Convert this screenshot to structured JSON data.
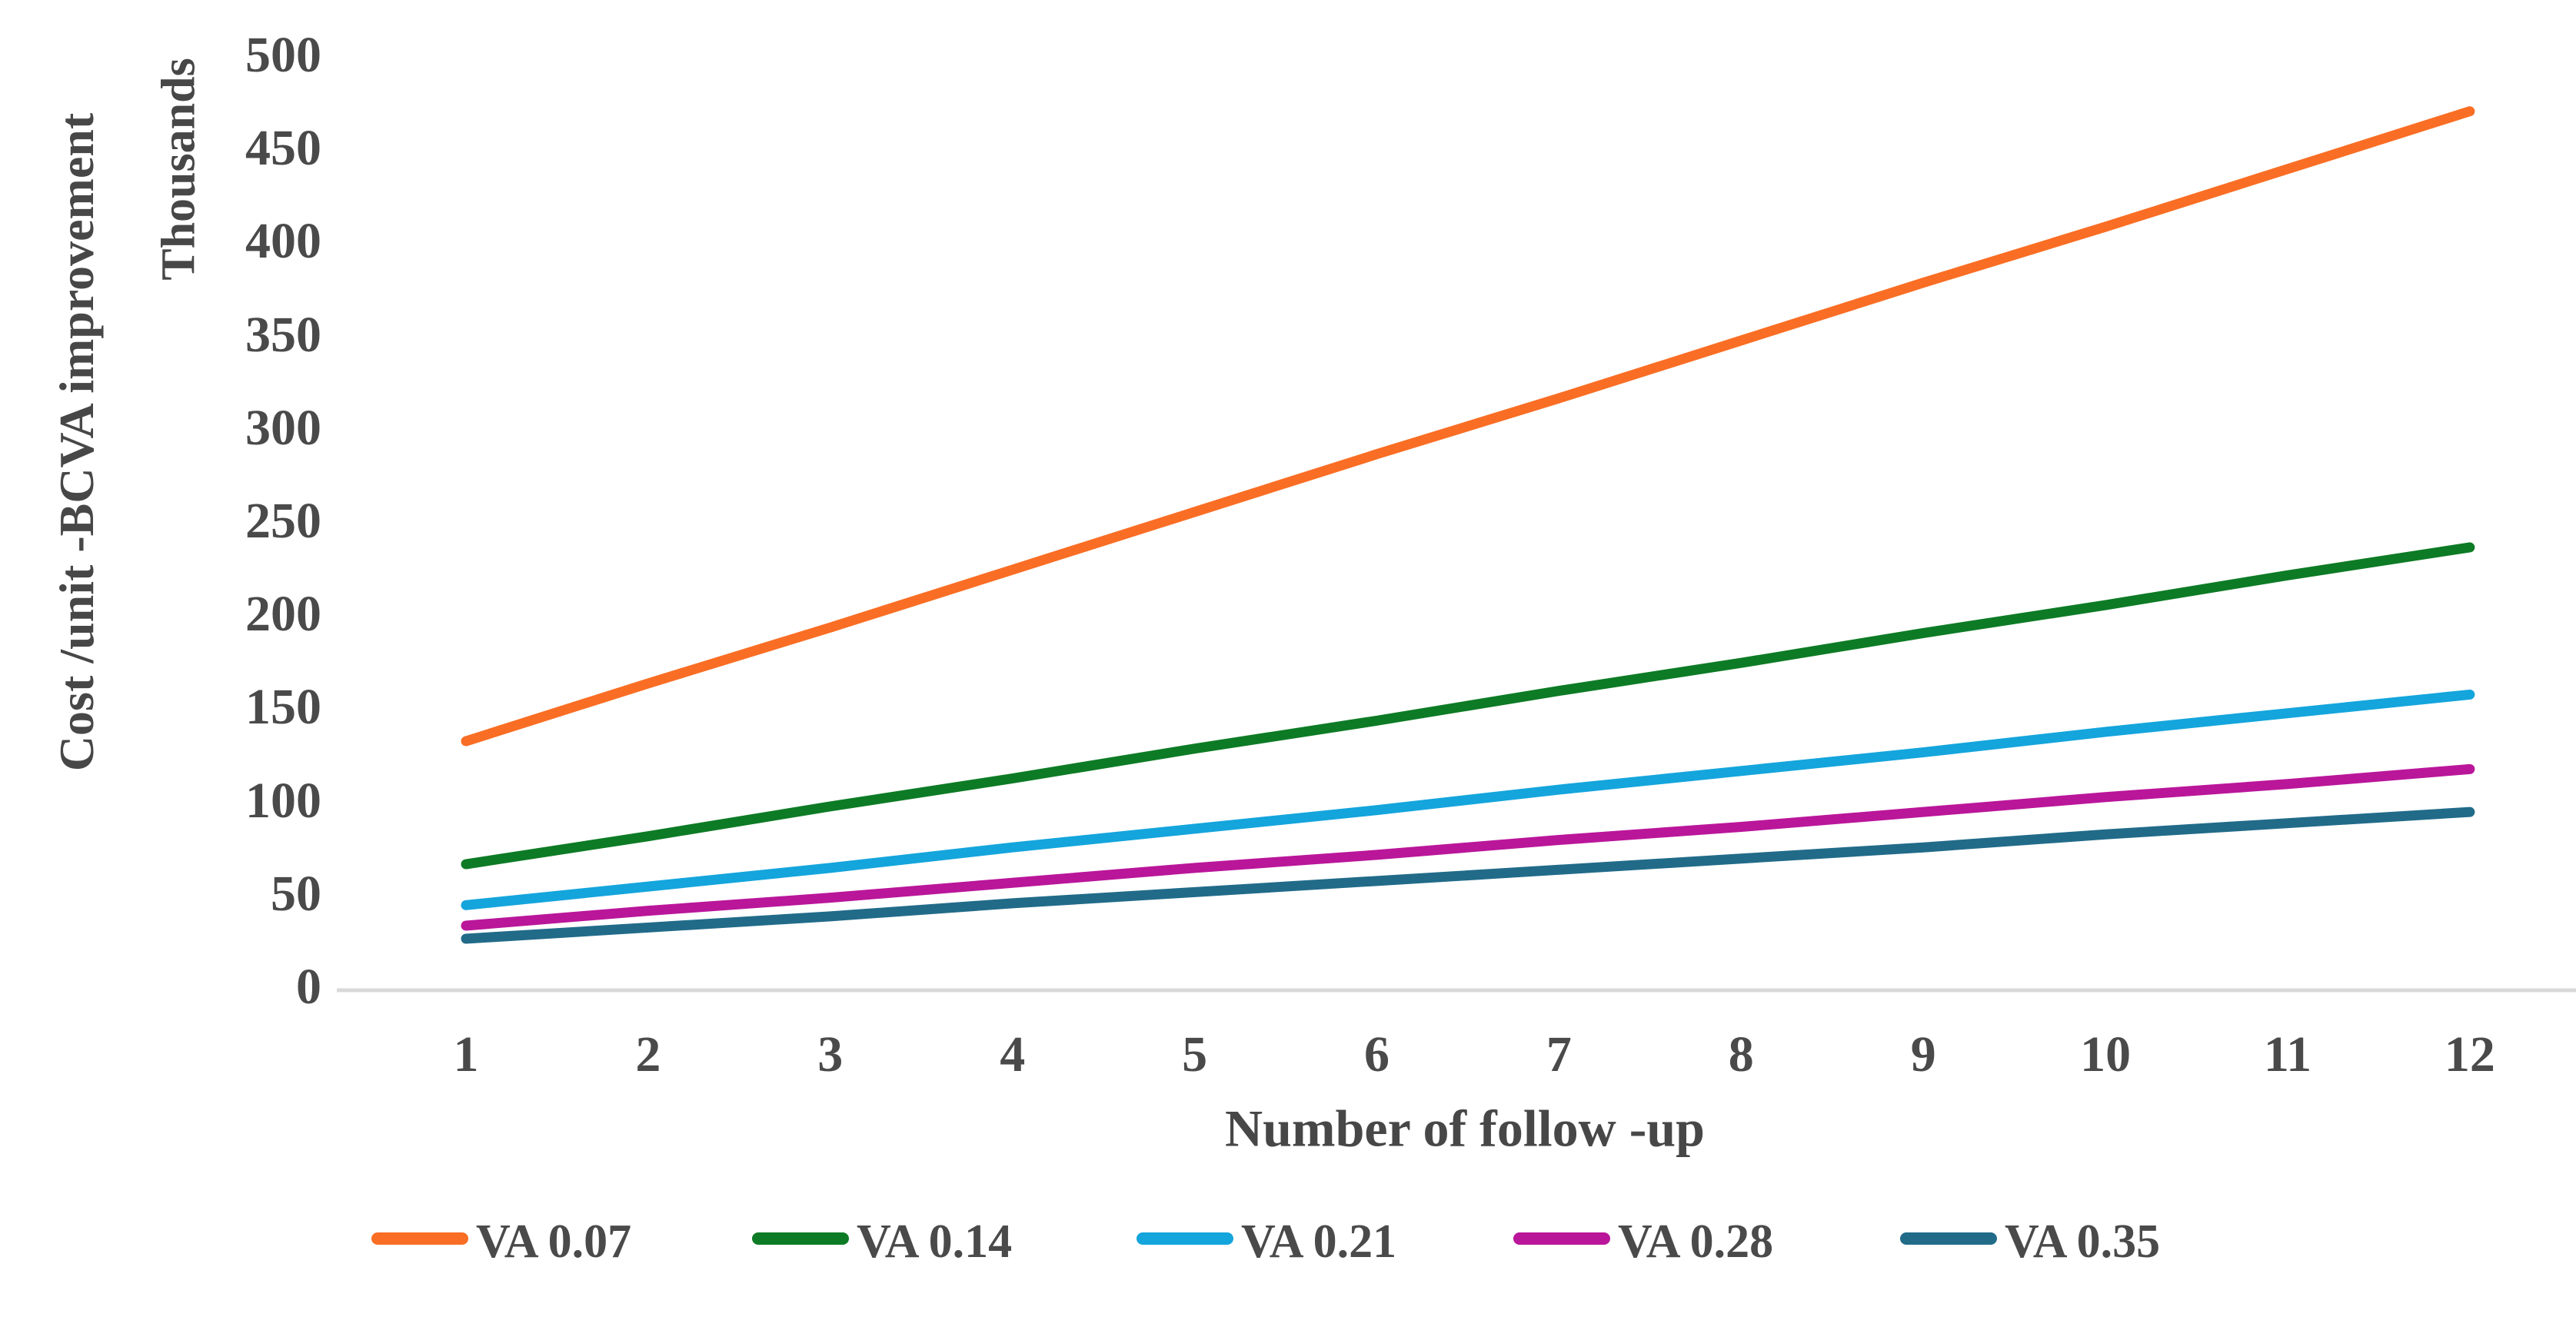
{
  "chart_data": {
    "type": "line",
    "title": "",
    "xlabel": "Number of follow -up",
    "ylabel": "Cost /unit -BCVA improvement",
    "y_unit_label": "Thousands",
    "x": [
      1,
      2,
      3,
      4,
      5,
      6,
      7,
      8,
      9,
      10,
      11,
      12
    ],
    "y_ticks": [
      0,
      50,
      100,
      150,
      200,
      250,
      300,
      350,
      400,
      450,
      500
    ],
    "ylim": [
      0,
      500
    ],
    "grid": false,
    "legend_position": "bottom",
    "axis_line_color": "#d9d9d9",
    "text_color": "#4a4a4a",
    "series": [
      {
        "name": "VA 0.07",
        "color": "#F96E24",
        "values": [
          132,
          163,
          193,
          224,
          255,
          286,
          316,
          347,
          378,
          408,
          439,
          470
        ]
      },
      {
        "name": "VA 0.14",
        "color": "#0D7B25",
        "values": [
          66,
          81,
          97,
          112,
          128,
          143,
          159,
          174,
          190,
          205,
          221,
          236
        ]
      },
      {
        "name": "VA 0.21",
        "color": "#14A5DC",
        "values": [
          44,
          54,
          64,
          75,
          85,
          95,
          106,
          116,
          126,
          137,
          147,
          157
        ]
      },
      {
        "name": "VA 0.28",
        "color": "#BA169A",
        "values": [
          33,
          41,
          48,
          56,
          64,
          71,
          79,
          86,
          94,
          102,
          109,
          117
        ]
      },
      {
        "name": "VA 0.35",
        "color": "#216B89",
        "values": [
          26,
          32,
          38,
          45,
          51,
          57,
          63,
          69,
          75,
          82,
          88,
          94
        ]
      }
    ]
  }
}
